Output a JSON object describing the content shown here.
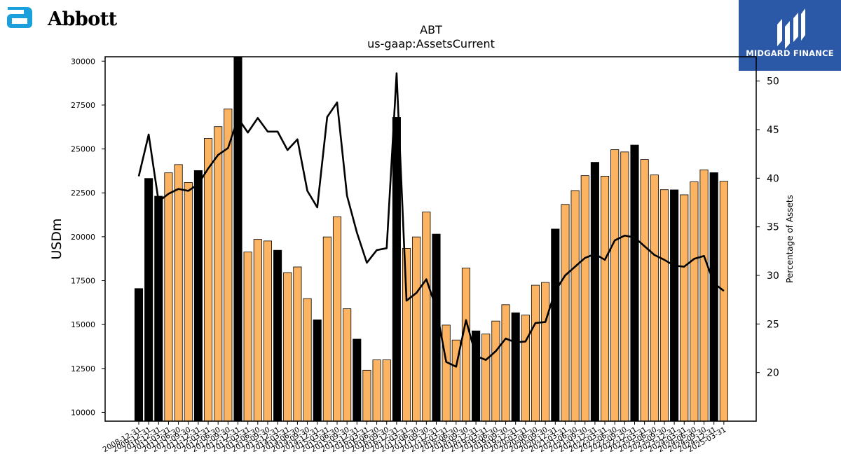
{
  "logos": {
    "left_brand": "Abbott",
    "right_brand": "MIDGARD FINANCE",
    "left_color": "#1ba0dc",
    "right_color": "#2c58a8"
  },
  "chart_data": {
    "type": "bar",
    "title": "ABT",
    "subtitle": "us-gaap:AssetsCurrent",
    "ylabel": "USDm",
    "y2label": "Percentage of Assets",
    "ylim": [
      9500,
      30250
    ],
    "y2lim": [
      15,
      52.5
    ],
    "yticks": [
      10000,
      12500,
      15000,
      17500,
      20000,
      22500,
      25000,
      27500,
      30000
    ],
    "y2ticks": [
      20,
      25,
      30,
      35,
      40,
      45,
      50
    ],
    "categories": [
      "2008-12-31",
      "2009-12-31",
      "2010-12-31",
      "2011-03-31",
      "2011-06-30",
      "2011-09-30",
      "2011-12-31",
      "2012-03-31",
      "2012-06-30",
      "2012-09-30",
      "2012-12-31",
      "2013-03-31",
      "2013-06-30",
      "2013-09-30",
      "2013-12-31",
      "2014-03-31",
      "2014-06-30",
      "2014-09-30",
      "2014-12-31",
      "2015-03-31",
      "2015-06-30",
      "2015-09-30",
      "2015-12-31",
      "2016-03-31",
      "2016-06-30",
      "2016-09-30",
      "2016-12-31",
      "2017-03-31",
      "2017-06-30",
      "2017-09-30",
      "2017-12-31",
      "2018-03-31",
      "2018-06-30",
      "2018-09-30",
      "2018-12-31",
      "2019-03-31",
      "2019-06-30",
      "2019-09-30",
      "2019-12-31",
      "2020-03-31",
      "2020-06-30",
      "2020-09-30",
      "2020-12-31",
      "2021-03-31",
      "2021-06-30",
      "2021-09-30",
      "2021-12-31",
      "2022-03-31",
      "2022-06-30",
      "2022-09-30",
      "2022-12-31",
      "2023-03-31",
      "2023-06-30",
      "2023-09-30",
      "2023-12-31",
      "2024-03-31",
      "2024-06-30",
      "2024-09-30",
      "2024-12-31",
      "2025-03-31"
    ],
    "xtick_labels_visible": [
      "2008-12-31",
      "2009-12-31",
      "2010-12-31",
      "2011-03-31",
      "2011-06-30",
      "2011-09-30",
      "2011-12-31",
      "2012-03-31",
      "2012-06-30",
      "2012-09-30",
      "2012-12-31",
      "2013-03-31",
      "2013-06-30",
      "2013-09-30",
      "2013-12-31",
      "2014-03-31",
      "2014-06-30",
      "2014-09-30",
      "2014-12-31",
      "2015-03-31",
      "2015-06-30",
      "2015-09-30",
      "2015-12-31",
      "2016-03-31",
      "2016-06-30",
      "2016-09-30",
      "2016-12-31",
      "2017-03-31",
      "2017-06-30",
      "2017-09-30",
      "2017-12-31",
      "2018-03-31",
      "2018-06-30",
      "2018-09-30",
      "2018-12-31",
      "2019-03-31",
      "2019-06-30",
      "2019-09-30",
      "2019-12-31",
      "2020-03-31",
      "2020-06-30",
      "2020-09-30",
      "2020-12-31",
      "2021-03-31",
      "2021-06-30",
      "2021-09-30",
      "2021-12-31",
      "2022-03-31",
      "2022-06-30",
      "2022-09-30",
      "2022-12-31",
      "2023-03-31",
      "2023-06-30",
      "2023-09-30",
      "2023-12-31",
      "2024-03-31",
      "2024-06-30",
      "2024-09-30",
      "2024-12-31",
      "2025-03-31"
    ],
    "series": [
      {
        "values": [
          17050,
          23320,
          22310,
          23640,
          24110,
          23090,
          23770,
          25600,
          26270,
          27280,
          30290,
          19130,
          19850,
          19760,
          19230,
          17960,
          18280,
          16480,
          15270,
          19990,
          21140,
          15900,
          14170,
          12400,
          12990,
          12990,
          26800,
          19340,
          19990,
          21410,
          20150,
          14970,
          14120,
          18220,
          14640,
          14460,
          15200,
          16130,
          15670,
          15540,
          17240,
          17400,
          20440,
          21840,
          22630,
          23480,
          24240,
          23450,
          24960,
          24830,
          25220,
          24400,
          23520,
          22680,
          22670,
          22390,
          23130,
          23810,
          23650,
          23160
        ],
        "annual_flags": [
          1,
          1,
          1,
          0,
          0,
          0,
          1,
          0,
          0,
          0,
          1,
          0,
          0,
          0,
          1,
          0,
          0,
          0,
          1,
          0,
          0,
          0,
          1,
          0,
          0,
          0,
          1,
          0,
          0,
          0,
          1,
          0,
          0,
          0,
          1,
          0,
          0,
          0,
          1,
          0,
          0,
          0,
          1,
          0,
          0,
          0,
          1,
          0,
          0,
          0,
          1,
          0,
          0,
          0,
          1,
          0,
          0,
          0,
          1,
          0
        ]
      },
      {
        "axis": "right",
        "type": "line",
        "values": [
          40.2,
          44.5,
          37.6,
          38.4,
          38.9,
          38.7,
          39.4,
          41.0,
          42.4,
          43.1,
          46.2,
          44.7,
          46.2,
          44.8,
          44.8,
          42.9,
          44.0,
          38.7,
          37.0,
          46.3,
          47.8,
          38.2,
          34.4,
          31.3,
          32.6,
          32.8,
          50.8,
          27.4,
          28.2,
          29.6,
          26.6,
          21.1,
          20.6,
          25.4,
          21.7,
          21.3,
          22.2,
          23.5,
          23.1,
          23.2,
          25.1,
          25.2,
          28.4,
          30.0,
          30.9,
          31.8,
          32.2,
          31.6,
          33.6,
          34.1,
          33.9,
          33.0,
          32.1,
          31.6,
          31.0,
          30.9,
          31.7,
          32.0,
          29.2,
          28.4
        ]
      }
    ],
    "colors": {
      "annual": "#000000",
      "quarterly": "#fdb462",
      "line": "#000000"
    },
    "grid": false,
    "legend": "none"
  }
}
